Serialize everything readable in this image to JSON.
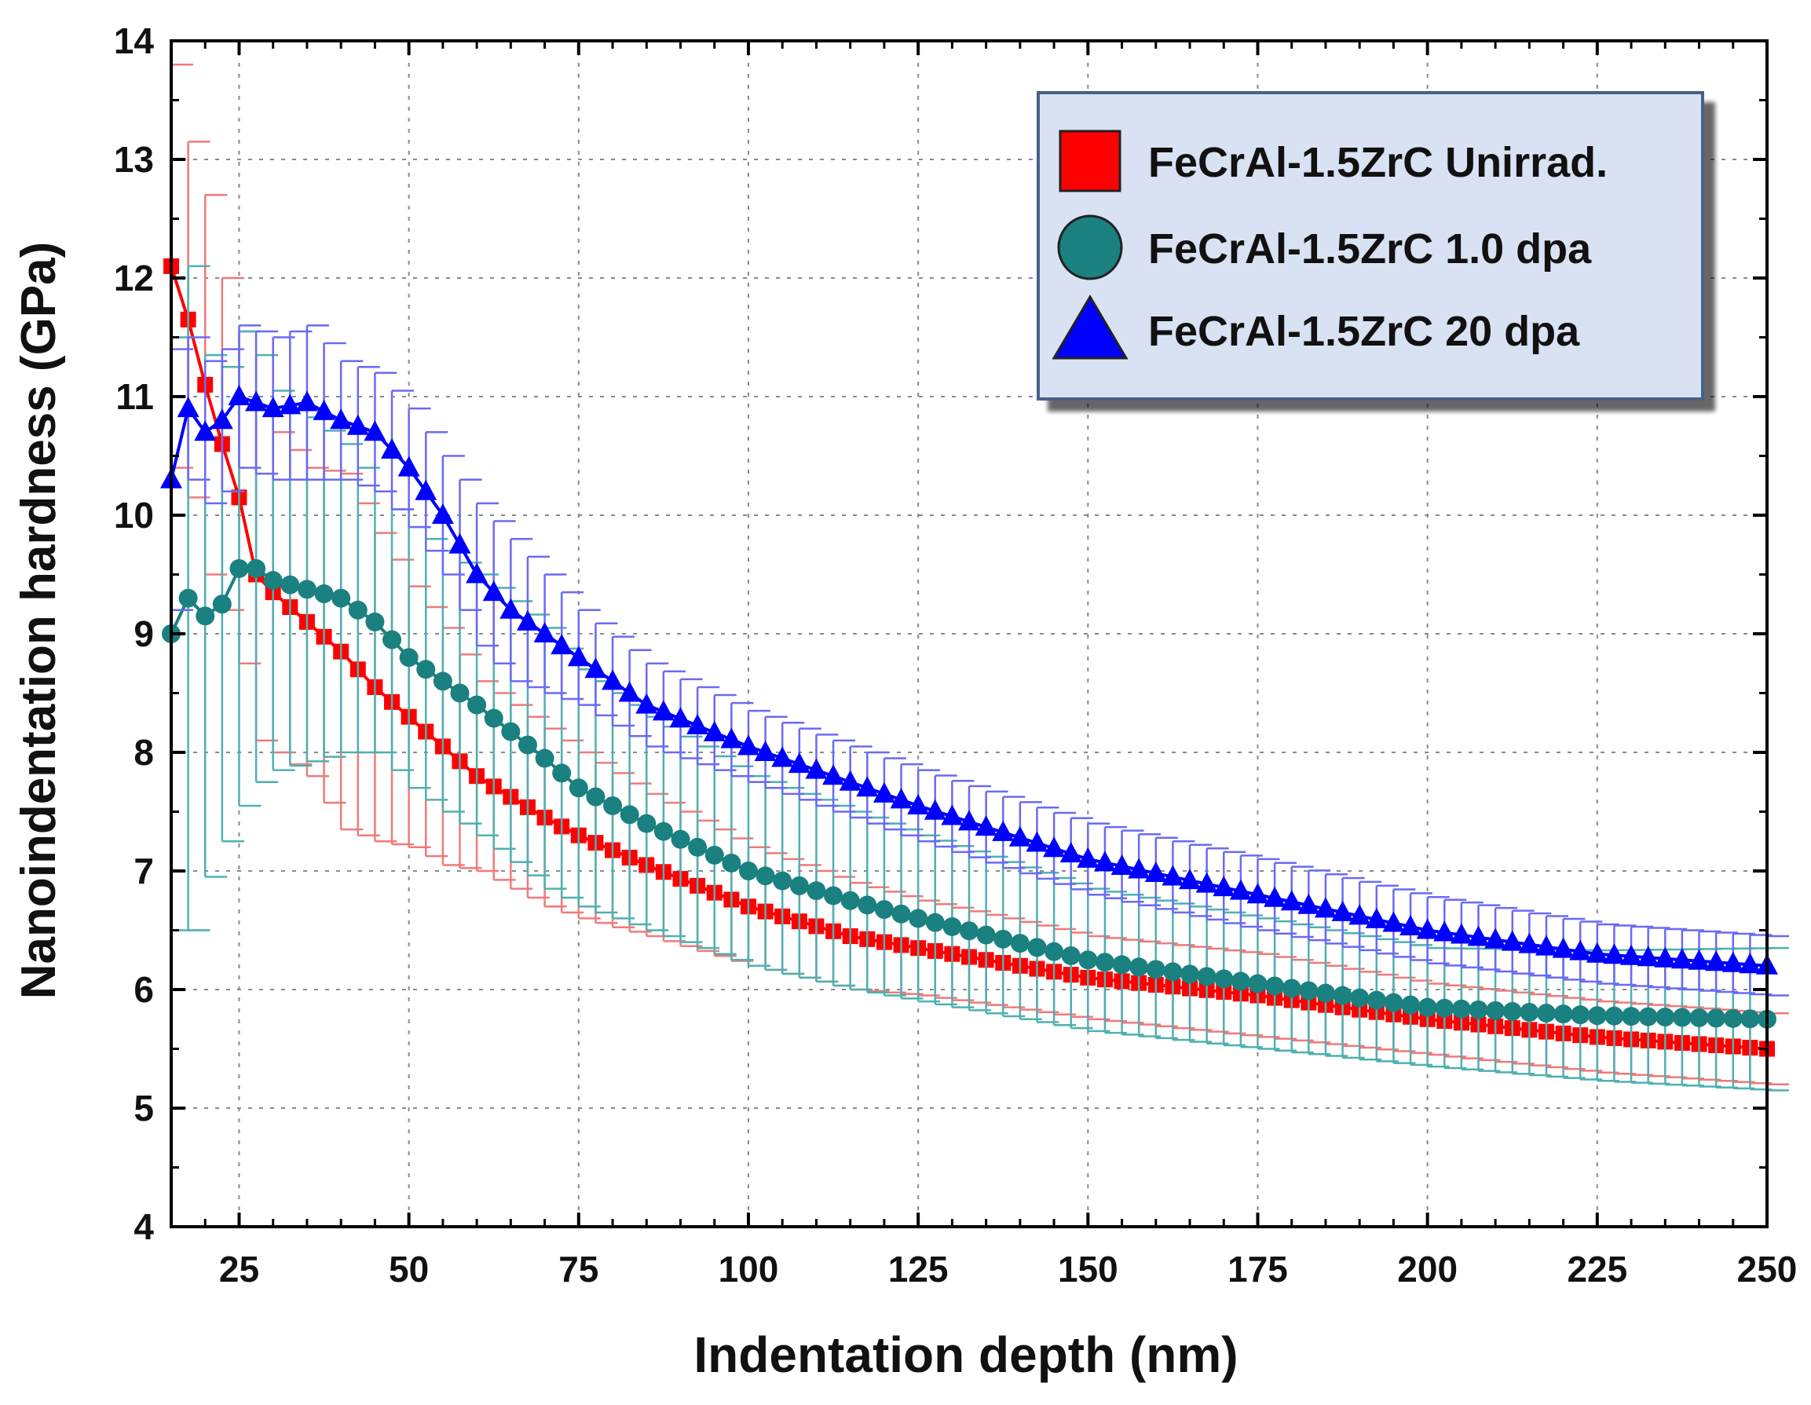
{
  "chart_data": {
    "type": "line",
    "title": "",
    "xlabel": "Indentation depth (nm)",
    "ylabel": "Nanoindentation hardness (GPa)",
    "xlim": [
      15,
      250
    ],
    "ylim": [
      4,
      14
    ],
    "xticks": [
      25,
      50,
      75,
      100,
      125,
      150,
      175,
      200,
      225,
      250
    ],
    "yticks": [
      4,
      5,
      6,
      7,
      8,
      9,
      10,
      11,
      12,
      13,
      14
    ],
    "grid": true,
    "legend_position": "top-right",
    "series": [
      {
        "name": "FeCrAl-1.5ZrC Unirrad.",
        "color": "#ff0000",
        "marker": "square",
        "anchors": [
          [
            15,
            12.1,
            1.7
          ],
          [
            17.5,
            11.65,
            1.5
          ],
          [
            20,
            11.1,
            1.6
          ],
          [
            22.5,
            10.6,
            1.4
          ],
          [
            25,
            10.15,
            1.4
          ],
          [
            27.5,
            9.5,
            1.4
          ],
          [
            30,
            9.35,
            1.35
          ],
          [
            35,
            9.1,
            1.3
          ],
          [
            40,
            8.85,
            1.5
          ],
          [
            45,
            8.55,
            1.3
          ],
          [
            50,
            8.3,
            1.1
          ],
          [
            55,
            8.05,
            1.0
          ],
          [
            60,
            7.8,
            0.8
          ],
          [
            70,
            7.45,
            0.75
          ],
          [
            75,
            7.3,
            0.7
          ],
          [
            85,
            7.05,
            0.6
          ],
          [
            100,
            6.7,
            0.5
          ],
          [
            115,
            6.45,
            0.45
          ],
          [
            125,
            6.35,
            0.4
          ],
          [
            150,
            6.1,
            0.35
          ],
          [
            175,
            5.95,
            0.35
          ],
          [
            200,
            5.75,
            0.3
          ],
          [
            225,
            5.6,
            0.3
          ],
          [
            250,
            5.5,
            0.3
          ]
        ]
      },
      {
        "name": "FeCrAl-1.5ZrC 1.0 dpa",
        "color": "#1a8080",
        "marker": "circle",
        "anchors": [
          [
            15,
            9.0,
            2.5
          ],
          [
            17.5,
            9.3,
            2.8
          ],
          [
            20,
            9.15,
            2.2
          ],
          [
            22.5,
            9.25,
            2.0
          ],
          [
            25,
            9.55,
            2.0
          ],
          [
            27.5,
            9.55,
            1.8
          ],
          [
            30,
            9.45,
            1.6
          ],
          [
            40,
            9.3,
            1.3
          ],
          [
            45,
            9.1,
            1.1
          ],
          [
            50,
            8.8,
            1.1
          ],
          [
            60,
            8.4,
            1.1
          ],
          [
            70,
            7.95,
            1.1
          ],
          [
            75,
            7.7,
            1.0
          ],
          [
            85,
            7.4,
            0.9
          ],
          [
            100,
            7.0,
            0.8
          ],
          [
            115,
            6.75,
            0.75
          ],
          [
            125,
            6.6,
            0.7
          ],
          [
            150,
            6.25,
            0.6
          ],
          [
            175,
            6.05,
            0.55
          ],
          [
            200,
            5.85,
            0.5
          ],
          [
            225,
            5.78,
            0.55
          ],
          [
            250,
            5.75,
            0.6
          ]
        ]
      },
      {
        "name": "FeCrAl-1.5ZrC 20 dpa",
        "color": "#0000ff",
        "marker": "triangle",
        "anchors": [
          [
            15,
            10.3,
            1.1
          ],
          [
            17.5,
            10.9,
            0.6
          ],
          [
            20,
            10.7,
            0.6
          ],
          [
            22.5,
            10.8,
            0.6
          ],
          [
            25,
            11.0,
            0.6
          ],
          [
            30,
            10.9,
            0.6
          ],
          [
            35,
            10.95,
            0.65
          ],
          [
            40,
            10.8,
            0.5
          ],
          [
            45,
            10.7,
            0.5
          ],
          [
            50,
            10.4,
            0.5
          ],
          [
            55,
            10.0,
            0.5
          ],
          [
            60,
            9.5,
            0.6
          ],
          [
            65,
            9.2,
            0.6
          ],
          [
            70,
            9.0,
            0.5
          ],
          [
            75,
            8.8,
            0.4
          ],
          [
            85,
            8.4,
            0.35
          ],
          [
            100,
            8.05,
            0.3
          ],
          [
            110,
            7.85,
            0.3
          ],
          [
            125,
            7.55,
            0.3
          ],
          [
            150,
            7.1,
            0.3
          ],
          [
            175,
            6.8,
            0.3
          ],
          [
            200,
            6.5,
            0.28
          ],
          [
            225,
            6.3,
            0.25
          ],
          [
            250,
            6.2,
            0.25
          ]
        ]
      }
    ]
  }
}
